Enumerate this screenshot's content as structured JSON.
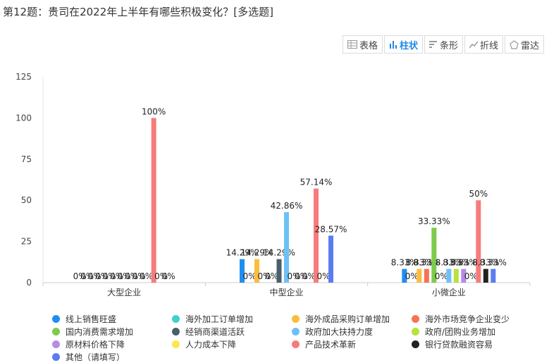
{
  "question": {
    "title": "第12题：贵司在2022年上半年有哪些积极变化？[多选题]"
  },
  "toolbar": {
    "buttons": [
      {
        "label": "表格",
        "icon": "table-icon"
      },
      {
        "label": "柱状",
        "icon": "bar-chart-icon",
        "active": true
      },
      {
        "label": "条形",
        "icon": "horizontal-bar-icon"
      },
      {
        "label": "折线",
        "icon": "line-chart-icon"
      },
      {
        "label": "雷达",
        "icon": "radar-icon"
      }
    ]
  },
  "chart_data": {
    "type": "bar",
    "categories": [
      "大型企业",
      "中型企业",
      "小微企业"
    ],
    "ylim": [
      0,
      125
    ],
    "yticks": [
      0,
      25,
      50,
      75,
      100,
      125
    ],
    "grid": false,
    "legend_position": "bottom",
    "series": [
      {
        "name": "线上销售旺盛",
        "color": "#1f8ef1",
        "values": [
          0,
          14.29,
          8.33
        ],
        "labels": [
          "0%",
          "14.29%",
          "8.33%"
        ]
      },
      {
        "name": "海外加工订单增加",
        "color": "#3ecfcf",
        "values": [
          0,
          0,
          0
        ],
        "labels": [
          "0%",
          "0%",
          "0%"
        ]
      },
      {
        "name": "海外成品采购订单增加",
        "color": "#fbbd3d",
        "values": [
          0,
          14.29,
          8.33
        ],
        "labels": [
          "0%",
          "14.29%",
          "8.33%"
        ]
      },
      {
        "name": "海外市场竞争企业变少",
        "color": "#f87254",
        "values": [
          0,
          0,
          8.33
        ],
        "labels": [
          "0%",
          "0%",
          "8.33%"
        ]
      },
      {
        "name": "国内消费需求增加",
        "color": "#7ccb4a",
        "values": [
          0,
          0,
          33.33
        ],
        "labels": [
          "0%",
          "0%",
          "33.33%"
        ]
      },
      {
        "name": "经销商渠道活跃",
        "color": "#4a5e6c",
        "values": [
          0,
          14.29,
          0
        ],
        "labels": [
          "0%",
          "14.29%",
          "0%"
        ]
      },
      {
        "name": "政府加大扶持力度",
        "color": "#6ec1f7",
        "values": [
          0,
          42.86,
          8.33
        ],
        "labels": [
          "0%",
          "42.86%",
          "8.33%"
        ]
      },
      {
        "name": "政府/团购业务增加",
        "color": "#b8e23c",
        "values": [
          0,
          0,
          8.33
        ],
        "labels": [
          "0%",
          "0%",
          "8.33%"
        ]
      },
      {
        "name": "原材料价格下降",
        "color": "#b58ce6",
        "values": [
          0,
          0,
          8.33
        ],
        "labels": [
          "0%",
          "0%",
          "8.33%"
        ]
      },
      {
        "name": "人力成本下降",
        "color": "#fbe84a",
        "values": [
          0,
          0,
          0
        ],
        "labels": [
          "0%",
          "0%",
          "0%"
        ]
      },
      {
        "name": "产品技术革新",
        "color": "#f77b7b",
        "values": [
          100,
          57.14,
          50
        ],
        "labels": [
          "100%",
          "57.14%",
          "50%"
        ]
      },
      {
        "name": "银行贷款融资容易",
        "color": "#222222",
        "values": [
          0,
          0,
          8.33
        ],
        "labels": [
          "0%",
          "0%",
          "8.33%"
        ]
      },
      {
        "name": "其他（请填写）",
        "color": "#5b7cf0",
        "values": [
          0,
          28.57,
          8.33
        ],
        "labels": [
          "0%",
          "28.57%",
          "8.33%"
        ]
      }
    ]
  }
}
